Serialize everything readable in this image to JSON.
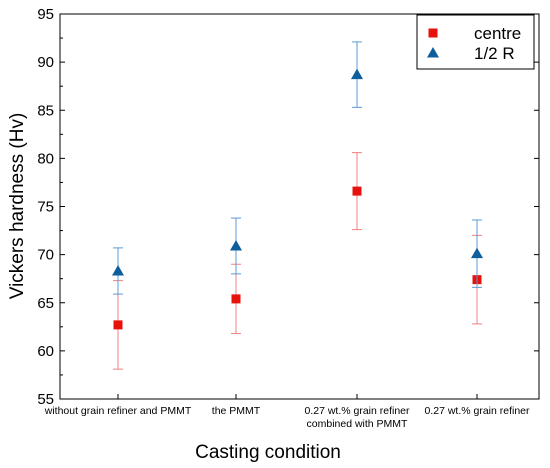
{
  "chart_data": {
    "type": "scatter",
    "title": "",
    "xlabel": "Casting condition",
    "ylabel": "Vickers hardness (Hv)",
    "ylim": [
      55,
      95
    ],
    "yticks": [
      55,
      60,
      65,
      70,
      75,
      80,
      85,
      90,
      95
    ],
    "categories": [
      [
        "without grain refiner and PMMT"
      ],
      [
        "the PMMT"
      ],
      [
        "0.27 wt.% grain refiner",
        "combined with PMMT"
      ],
      [
        "0.27 wt.% grain refiner"
      ]
    ],
    "series": [
      {
        "name": "centre",
        "marker": "square",
        "color": "#e8120c",
        "errorbar_color": "#f08080",
        "values": [
          62.7,
          65.4,
          76.6,
          67.4
        ],
        "errors": [
          4.6,
          3.6,
          4.0,
          4.6
        ]
      },
      {
        "name": "1/2 R",
        "marker": "triangle",
        "color": "#0f5e9c",
        "errorbar_color": "#5b9bd5",
        "values": [
          68.3,
          70.9,
          88.7,
          70.1
        ],
        "errors": [
          2.4,
          2.9,
          3.4,
          3.5
        ]
      }
    ],
    "grid": false,
    "legend": "top-right"
  }
}
